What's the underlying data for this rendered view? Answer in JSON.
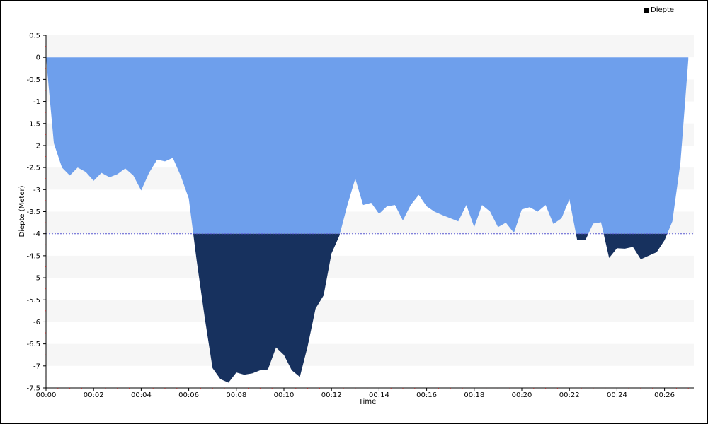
{
  "chart_data": {
    "type": "area",
    "title": "",
    "xlabel": "Time",
    "ylabel": "Diepte (Meter)",
    "ylim": [
      -7.5,
      0.5
    ],
    "xlim_minutes": [
      0,
      27.2
    ],
    "threshold": -4,
    "ytick_values": [
      0.5,
      0,
      -0.5,
      -1,
      -1.5,
      -2,
      -2.5,
      -3,
      -3.5,
      -4,
      -4.5,
      -5,
      -5.5,
      -6,
      -6.5,
      -7,
      -7.5
    ],
    "ytick_labels": [
      "0.5",
      "0",
      "-0.5",
      "-1",
      "-1.5",
      "-2",
      "-2.5",
      "-3",
      "-3.5",
      "-4",
      "-4.5",
      "-5",
      "-5.5",
      "-6",
      "-6.5",
      "-7",
      "-7.5"
    ],
    "xtick_values": [
      0,
      2,
      4,
      6,
      8,
      10,
      12,
      14,
      16,
      18,
      20,
      22,
      24,
      26
    ],
    "xtick_labels": [
      "00:00",
      "00:02",
      "00:04",
      "00:06",
      "00:08",
      "00:10",
      "00:12",
      "00:14",
      "00:16",
      "00:18",
      "00:20",
      "00:22",
      "00:24",
      "00:26"
    ],
    "grid": "alternating horizontal bands",
    "legend_position": "top-right",
    "series": [
      {
        "name": "Diepte",
        "x": [
          0,
          0.33,
          0.67,
          1.0,
          1.33,
          1.67,
          2.0,
          2.33,
          2.67,
          3.0,
          3.33,
          3.67,
          4.0,
          4.33,
          4.67,
          5.0,
          5.33,
          5.67,
          6.0,
          6.33,
          6.67,
          7.0,
          7.33,
          7.67,
          8.0,
          8.33,
          8.67,
          9.0,
          9.33,
          9.67,
          10.0,
          10.33,
          10.67,
          11.0,
          11.33,
          11.67,
          12.0,
          12.33,
          12.67,
          13.0,
          13.33,
          13.67,
          14.0,
          14.33,
          14.67,
          15.0,
          15.33,
          15.67,
          16.0,
          16.33,
          16.67,
          17.0,
          17.33,
          17.67,
          18.0,
          18.33,
          18.67,
          19.0,
          19.33,
          19.67,
          20.0,
          20.33,
          20.67,
          21.0,
          21.33,
          21.67,
          22.0,
          22.33,
          22.67,
          23.0,
          23.33,
          23.67,
          24.0,
          24.33,
          24.67,
          25.0,
          25.33,
          25.67,
          26.0,
          26.33,
          26.67,
          27.0
        ],
        "values": [
          0.0,
          -1.95,
          -2.5,
          -2.68,
          -2.5,
          -2.6,
          -2.8,
          -2.62,
          -2.72,
          -2.65,
          -2.52,
          -2.68,
          -3.02,
          -2.62,
          -2.32,
          -2.36,
          -2.28,
          -2.7,
          -3.2,
          -4.6,
          -5.9,
          -7.05,
          -7.3,
          -7.38,
          -7.15,
          -7.2,
          -7.17,
          -7.1,
          -7.08,
          -6.58,
          -6.75,
          -7.1,
          -7.25,
          -6.55,
          -5.7,
          -5.4,
          -4.45,
          -4.05,
          -3.35,
          -2.75,
          -3.35,
          -3.3,
          -3.55,
          -3.38,
          -3.35,
          -3.7,
          -3.35,
          -3.12,
          -3.38,
          -3.5,
          -3.58,
          -3.65,
          -3.72,
          -3.35,
          -3.85,
          -3.35,
          -3.5,
          -3.85,
          -3.75,
          -3.98,
          -3.45,
          -3.4,
          -3.5,
          -3.35,
          -3.78,
          -3.65,
          -3.22,
          -4.15,
          -4.15,
          -3.77,
          -3.74,
          -4.55,
          -4.33,
          -4.34,
          -4.3,
          -4.58,
          -4.5,
          -4.42,
          -4.15,
          -3.72,
          -2.38,
          -0.05
        ]
      }
    ],
    "colors": {
      "above_threshold": "#6e9fec",
      "below_threshold": "#17315e",
      "threshold_line": "#5a5ad2",
      "band": "#f6f6f6",
      "axis": "#000000",
      "minor_tick": "#c03030"
    }
  }
}
